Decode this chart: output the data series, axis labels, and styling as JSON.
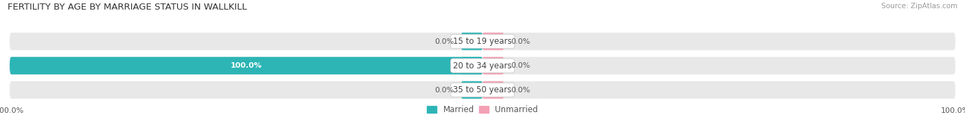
{
  "title": "FERTILITY BY AGE BY MARRIAGE STATUS IN WALLKILL",
  "source": "Source: ZipAtlas.com",
  "rows": [
    {
      "label": "15 to 19 years",
      "married": 0.0,
      "unmarried": 0.0
    },
    {
      "label": "20 to 34 years",
      "married": 100.0,
      "unmarried": 0.0
    },
    {
      "label": "35 to 50 years",
      "married": 0.0,
      "unmarried": 0.0
    }
  ],
  "married_color": "#2db5b5",
  "unmarried_color": "#f4a0b5",
  "bar_bg_color": "#e8e8e8",
  "bar_bg_color2": "#d8d8d8",
  "xlim": [
    -100,
    100
  ],
  "left_label": "100.0%",
  "right_label": "100.0%",
  "legend_married": "Married",
  "legend_unmarried": "Unmarried",
  "title_fontsize": 9.5,
  "source_fontsize": 7.5,
  "label_fontsize": 8.5,
  "val_fontsize": 8,
  "tick_fontsize": 8
}
